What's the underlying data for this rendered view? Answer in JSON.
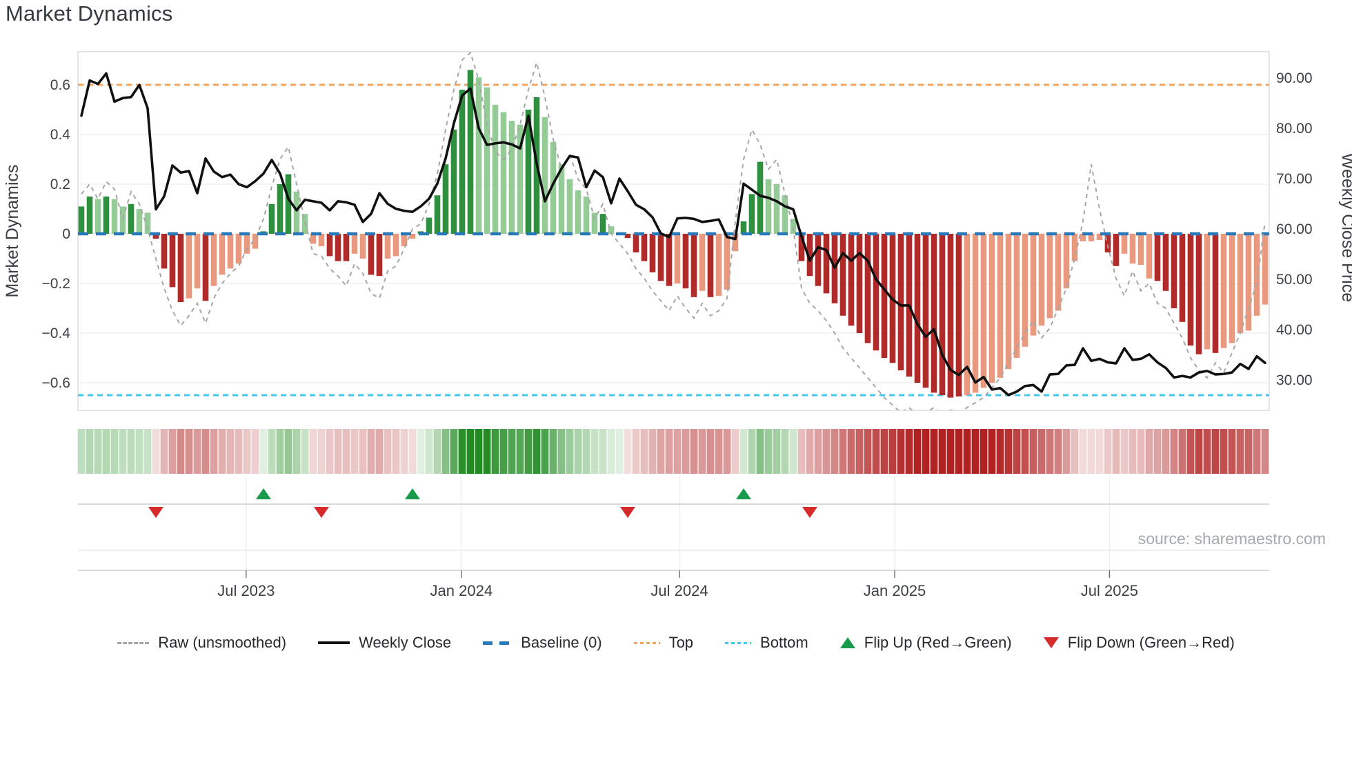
{
  "title": "Market Dynamics",
  "source": "source: sharemaestro.com",
  "legend": {
    "items": [
      {
        "label": "Raw (unsmoothed)",
        "swatch": "dashed-gray"
      },
      {
        "label": "Weekly Close",
        "swatch": "solid-black"
      },
      {
        "label": "Baseline (0)",
        "swatch": "dashed-blue"
      },
      {
        "label": "Top",
        "swatch": "dotted-orange"
      },
      {
        "label": "Bottom",
        "swatch": "dotted-cyan"
      },
      {
        "label": "Flip Up (Red→Green)",
        "swatch": "triangle-up-green"
      },
      {
        "label": "Flip Down (Green→Red)",
        "swatch": "triangle-down-red"
      }
    ]
  },
  "colors": {
    "bar_green_dark": "#2e8f3e",
    "bar_green_light": "#94cb97",
    "bar_red_dark": "#b02a2a",
    "bar_red_light": "#e8997e",
    "close_line": "#111111",
    "raw_line": "#a6a6a6",
    "baseline": "#2879b9",
    "top_line": "#f3a55f",
    "bottom_line": "#41c7ee",
    "flip_up": "#189b4a",
    "flip_down": "#d62b2b",
    "heat_green": "#228b22",
    "heat_red": "#b02222",
    "grid": "#e9edf0",
    "spine": "#cfd4d9",
    "tick_text": "#3a4045",
    "source_text": "#a3a9af"
  },
  "chart_data": {
    "type": "bar",
    "subtype": "weekly-oscillator-with-price-line-heatmap-and-flip-markers",
    "title": "Market Dynamics",
    "x_axis": {
      "tick_labels": [
        "Jul 2023",
        "Jan 2024",
        "Jul 2024",
        "Jan 2025",
        "Jul 2025"
      ],
      "tick_week_positions": [
        19.9,
        45.9,
        72.25,
        98.25,
        124.2
      ],
      "weeks_total": 144
    },
    "y_left": {
      "label": "Market Dynamics",
      "tick_values": [
        0.6,
        0.4,
        0.2,
        0,
        -0.2,
        -0.4,
        -0.6
      ],
      "tick_labels": [
        "0.6",
        "0.4",
        "0.2",
        "0",
        "−0.2",
        "−0.4",
        "−0.6"
      ],
      "range": [
        -0.72,
        0.72
      ]
    },
    "y_right": {
      "label": "Weekly Close Price",
      "tick_values": [
        90,
        80,
        70,
        60,
        50,
        40,
        30
      ],
      "tick_labels": [
        "90.00",
        "80.00",
        "70.00",
        "60.00",
        "50.00",
        "40.00",
        "30.00"
      ],
      "range": [
        24,
        95.2
      ]
    },
    "reference_lines": {
      "baseline": 0,
      "top": 0.6,
      "bottom": -0.65
    },
    "series": {
      "oscillator_bars": [
        0.11,
        0.15,
        0.14,
        0.15,
        0.14,
        0.11,
        0.12,
        0.1,
        0.085,
        -0.02,
        -0.14,
        -0.215,
        -0.275,
        -0.26,
        -0.22,
        -0.27,
        -0.21,
        -0.165,
        -0.14,
        -0.12,
        -0.08,
        -0.06,
        0.01,
        0.12,
        0.2,
        0.24,
        0.17,
        0.08,
        -0.04,
        -0.05,
        -0.09,
        -0.11,
        -0.11,
        -0.08,
        -0.1,
        -0.165,
        -0.17,
        -0.1,
        -0.09,
        -0.05,
        -0.02,
        0.01,
        0.065,
        0.155,
        0.28,
        0.42,
        0.58,
        0.66,
        0.63,
        0.59,
        0.52,
        0.49,
        0.455,
        0.44,
        0.5,
        0.55,
        0.47,
        0.37,
        0.28,
        0.22,
        0.175,
        0.15,
        0.085,
        0.08,
        0.03,
        0.005,
        -0.017,
        -0.075,
        -0.11,
        -0.155,
        -0.19,
        -0.21,
        -0.2,
        -0.22,
        -0.255,
        -0.23,
        -0.255,
        -0.25,
        -0.225,
        -0.07,
        0.05,
        0.16,
        0.29,
        0.22,
        0.2,
        0.155,
        0.06,
        -0.11,
        -0.17,
        -0.21,
        -0.24,
        -0.28,
        -0.33,
        -0.37,
        -0.4,
        -0.44,
        -0.47,
        -0.5,
        -0.52,
        -0.55,
        -0.575,
        -0.6,
        -0.62,
        -0.64,
        -0.65,
        -0.66,
        -0.655,
        -0.65,
        -0.64,
        -0.62,
        -0.6,
        -0.58,
        -0.545,
        -0.5,
        -0.455,
        -0.41,
        -0.37,
        -0.34,
        -0.31,
        -0.22,
        -0.11,
        -0.03,
        -0.03,
        -0.025,
        -0.075,
        -0.13,
        -0.08,
        -0.12,
        -0.125,
        -0.18,
        -0.19,
        -0.23,
        -0.3,
        -0.355,
        -0.45,
        -0.485,
        -0.465,
        -0.48,
        -0.46,
        -0.44,
        -0.4,
        -0.39,
        -0.33,
        -0.285
      ],
      "bar_shade": "ddldlldllddddlldllllllddddlllldddllddlllldddddddllllllddllllllldllddddddlddldllldddllllddddddddddddddddddddlllllllllllllllllddllllddddddldllllll",
      "raw_unsmoothed": [
        0.16,
        0.2,
        0.14,
        0.21,
        0.18,
        0.06,
        0.17,
        0.12,
        0.02,
        -0.1,
        -0.22,
        -0.31,
        -0.37,
        -0.33,
        -0.28,
        -0.36,
        -0.26,
        -0.2,
        -0.16,
        -0.13,
        -0.06,
        -0.02,
        0.06,
        0.19,
        0.3,
        0.35,
        0.2,
        0.05,
        -0.08,
        -0.09,
        -0.14,
        -0.17,
        -0.21,
        -0.12,
        -0.16,
        -0.24,
        -0.26,
        -0.15,
        -0.13,
        -0.06,
        0.02,
        0.04,
        0.12,
        0.24,
        0.42,
        0.58,
        0.7,
        0.73,
        0.62,
        0.44,
        0.33,
        0.3,
        0.34,
        0.44,
        0.58,
        0.69,
        0.55,
        0.38,
        0.26,
        0.32,
        0.22,
        0.18,
        0.06,
        0.12,
        0.0,
        -0.04,
        -0.08,
        -0.14,
        -0.18,
        -0.23,
        -0.27,
        -0.31,
        -0.25,
        -0.3,
        -0.34,
        -0.28,
        -0.33,
        -0.31,
        -0.26,
        0.05,
        0.3,
        0.42,
        0.36,
        0.26,
        0.3,
        0.16,
        0.02,
        -0.22,
        -0.28,
        -0.31,
        -0.35,
        -0.4,
        -0.46,
        -0.5,
        -0.54,
        -0.58,
        -0.62,
        -0.66,
        -0.69,
        -0.72,
        -0.7,
        -0.73,
        -0.72,
        -0.7,
        -0.73,
        -0.71,
        -0.72,
        -0.7,
        -0.68,
        -0.66,
        -0.62,
        -0.58,
        -0.52,
        -0.46,
        -0.4,
        -0.35,
        -0.42,
        -0.38,
        -0.3,
        -0.22,
        -0.1,
        0.05,
        0.28,
        0.1,
        -0.05,
        -0.18,
        -0.25,
        -0.15,
        -0.23,
        -0.2,
        -0.28,
        -0.3,
        -0.36,
        -0.42,
        -0.5,
        -0.55,
        -0.58,
        -0.52,
        -0.56,
        -0.48,
        -0.4,
        -0.3,
        -0.2,
        0.05
      ],
      "weekly_close": [
        82.5,
        89.5,
        88.8,
        90.9,
        85.3,
        86.0,
        86.2,
        88.6,
        84.0,
        63.9,
        66.5,
        72.6,
        71.2,
        71.5,
        67.1,
        74.0,
        71.4,
        70.3,
        70.8,
        68.9,
        68.3,
        69.5,
        71.0,
        73.7,
        71.0,
        66.0,
        63.7,
        65.8,
        65.5,
        65.2,
        63.7,
        65.5,
        65.3,
        64.8,
        61.4,
        63.0,
        67.1,
        65.0,
        64.0,
        63.6,
        63.4,
        64.5,
        66.0,
        69.0,
        74.0,
        81.0,
        86.5,
        87.9,
        80.0,
        76.7,
        77.0,
        77.2,
        76.8,
        76.0,
        82.5,
        73.0,
        65.5,
        69.0,
        72.0,
        74.5,
        74.2,
        68.3,
        71.6,
        70.3,
        65.1,
        70.0,
        67.5,
        64.8,
        63.9,
        62.3,
        59.1,
        58.4,
        62.1,
        62.2,
        62.0,
        61.4,
        61.6,
        61.9,
        58.4,
        58.0,
        69.0,
        67.8,
        66.6,
        66.2,
        65.5,
        64.5,
        63.9,
        58.5,
        53.7,
        56.4,
        55.8,
        52.3,
        55.2,
        53.7,
        55.2,
        53.7,
        50.0,
        48.0,
        46.0,
        44.8,
        44.8,
        41.1,
        38.6,
        40.1,
        35.0,
        32.0,
        31.0,
        32.6,
        29.5,
        30.6,
        28.1,
        28.4,
        27.0,
        27.7,
        28.8,
        29.0,
        27.7,
        31.1,
        31.2,
        32.9,
        33.0,
        36.3,
        33.8,
        34.2,
        33.5,
        33.3,
        36.3,
        34.0,
        34.2,
        35.1,
        33.5,
        32.4,
        30.5,
        30.8,
        30.5,
        31.5,
        31.8,
        31.1,
        31.2,
        31.5,
        33.2,
        32.2,
        34.7,
        33.4
      ]
    },
    "markers": {
      "flip_up_weeks": [
        22,
        40,
        80
      ],
      "flip_down_weeks": [
        9,
        29,
        66,
        88
      ]
    },
    "heatmap": {
      "source_series": "oscillator_bars",
      "position": "strip-below-main-plot"
    },
    "legend_entries": [
      "Raw (unsmoothed)",
      "Weekly Close",
      "Baseline (0)",
      "Top",
      "Bottom",
      "Flip Up (Red→Green)",
      "Flip Down (Green→Red)"
    ],
    "grid": "horizontal-only",
    "legend_position": "bottom-center"
  }
}
